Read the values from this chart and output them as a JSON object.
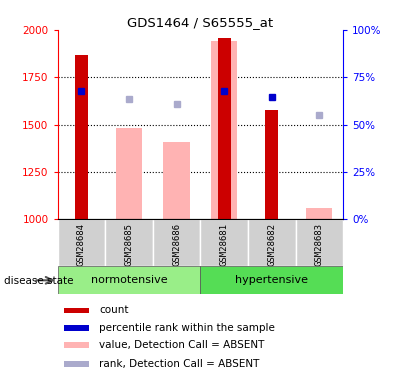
{
  "title": "GDS1464 / S65555_at",
  "samples": [
    "GSM28684",
    "GSM28685",
    "GSM28686",
    "GSM28681",
    "GSM28682",
    "GSM28683"
  ],
  "ylim_left": [
    1000,
    2000
  ],
  "ylim_right": [
    0,
    100
  ],
  "yticks_left": [
    1000,
    1250,
    1500,
    1750,
    2000
  ],
  "yticks_right": [
    0,
    25,
    50,
    75,
    100
  ],
  "bar_values": [
    1870,
    null,
    null,
    1960,
    1580,
    null
  ],
  "bar_color": "#cc0000",
  "absent_bar_values": [
    null,
    1485,
    1410,
    1940,
    null,
    1060
  ],
  "absent_bar_color": "#ffb3b3",
  "blue_square_values": [
    1680,
    null,
    null,
    1680,
    1645,
    null
  ],
  "blue_square_color": "#0000cc",
  "lavender_square_values": [
    null,
    1635,
    1610,
    null,
    null,
    1550
  ],
  "lavender_square_color": "#aaaacc",
  "norm_color": "#99ee88",
  "hyp_color": "#55dd55",
  "legend_items": [
    {
      "label": "count",
      "color": "#cc0000"
    },
    {
      "label": "percentile rank within the sample",
      "color": "#0000cc"
    },
    {
      "label": "value, Detection Call = ABSENT",
      "color": "#ffb3b3"
    },
    {
      "label": "rank, Detection Call = ABSENT",
      "color": "#aaaacc"
    }
  ]
}
